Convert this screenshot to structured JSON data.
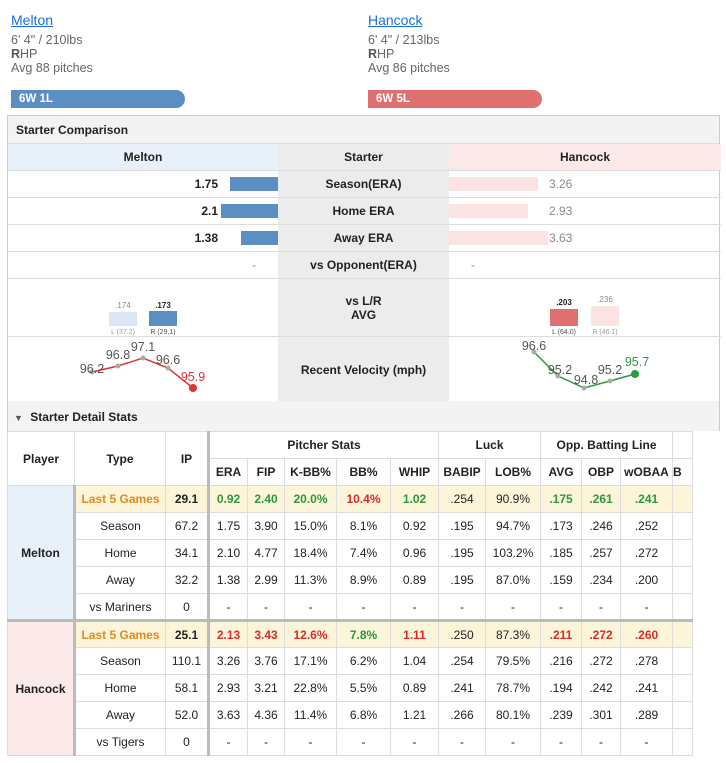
{
  "header": {
    "top_link": "...py"
  },
  "pitchers": [
    {
      "name": "Melton",
      "size": "6' 4\" / 210lbs",
      "hand_bold": "R",
      "hand_rest": "HP",
      "avg": "Avg 88 pitches",
      "record": "6W 1L",
      "color": "#5b8fc4"
    },
    {
      "name": "Hancock",
      "size": "6' 4\" / 213lbs",
      "hand_bold": "R",
      "hand_rest": "HP",
      "avg": "Avg 86 pitches",
      "record": "6W 5L",
      "color": "#e07070"
    }
  ],
  "comparison": {
    "title": "Starter Comparison",
    "left_header": "Melton",
    "mid_header": "Starter",
    "right_header": "Hancock",
    "rows": [
      {
        "label": "Season(ERA)",
        "left": "1.75",
        "right": "3.26"
      },
      {
        "label": "Home ERA",
        "left": "2.1",
        "right": "2.93"
      },
      {
        "label": "Away ERA",
        "left": "1.38",
        "right": "3.63"
      },
      {
        "label": "vs Opponent(ERA)",
        "left": "-",
        "right": "-"
      }
    ],
    "split_label_1": "vs L/R",
    "split_label_2": "AVG",
    "left_split": {
      "l_val": ".174",
      "l_tag": "L (37.2)",
      "r_val": ".173",
      "r_tag": "R (29.1)"
    },
    "right_split": {
      "l_val": ".203",
      "l_tag": "L (64.0)",
      "r_val": ".236",
      "r_tag": "R (46.1)"
    },
    "velocity_label": "Recent Velocity (mph)",
    "left_velocity": [
      "96.2",
      "96.8",
      "97.1",
      "96.6",
      "95.9"
    ],
    "right_velocity": [
      "96.6",
      "95.2",
      "94.8",
      "95.2",
      "95.7"
    ]
  },
  "detail": {
    "title": "Starter Detail Stats",
    "toggle_icon": "triangle-down-icon",
    "groups": {
      "pitcher": "Pitcher Stats",
      "luck": "Luck",
      "opp": "Opp. Batting Line"
    },
    "cols": {
      "player": "Player",
      "type": "Type",
      "ip": "IP",
      "era": "ERA",
      "fip": "FIP",
      "kbb": "K-BB%",
      "bb": "BB%",
      "whip": "WHIP",
      "babip": "BABIP",
      "lob": "LOB%",
      "avg": "AVG",
      "obp": "OBP",
      "wobaa": "wOBAA",
      "extra": "B"
    },
    "melton": {
      "player": "Melton",
      "rows": [
        {
          "type": "Last 5 Games",
          "ip": "29.1",
          "era": "0.92",
          "fip": "2.40",
          "kbb": "20.0%",
          "bb": "10.4%",
          "whip": "1.02",
          "babip": ".254",
          "lob": "90.9%",
          "avg": ".175",
          "obp": ".261",
          "wobaa": ".241"
        },
        {
          "type": "Season",
          "ip": "67.2",
          "era": "1.75",
          "fip": "3.90",
          "kbb": "15.0%",
          "bb": "8.1%",
          "whip": "0.92",
          "babip": ".195",
          "lob": "94.7%",
          "avg": ".173",
          "obp": ".246",
          "wobaa": ".252"
        },
        {
          "type": "Home",
          "ip": "34.1",
          "era": "2.10",
          "fip": "4.77",
          "kbb": "18.4%",
          "bb": "7.4%",
          "whip": "0.96",
          "babip": ".195",
          "lob": "103.2%",
          "avg": ".185",
          "obp": ".257",
          "wobaa": ".272"
        },
        {
          "type": "Away",
          "ip": "32.2",
          "era": "1.38",
          "fip": "2.99",
          "kbb": "11.3%",
          "bb": "8.9%",
          "whip": "0.89",
          "babip": ".195",
          "lob": "87.0%",
          "avg": ".159",
          "obp": ".234",
          "wobaa": ".200"
        },
        {
          "type": "vs Mariners",
          "ip": "0",
          "era": "-",
          "fip": "-",
          "kbb": "-",
          "bb": "-",
          "whip": "-",
          "babip": "-",
          "lob": "-",
          "avg": "-",
          "obp": "-",
          "wobaa": "-"
        }
      ]
    },
    "hancock": {
      "player": "Hancock",
      "rows": [
        {
          "type": "Last 5 Games",
          "ip": "25.1",
          "era": "2.13",
          "fip": "3.43",
          "kbb": "12.6%",
          "bb": "7.8%",
          "whip": "1.11",
          "babip": ".250",
          "lob": "87.3%",
          "avg": ".211",
          "obp": ".272",
          "wobaa": ".260"
        },
        {
          "type": "Season",
          "ip": "110.1",
          "era": "3.26",
          "fip": "3.76",
          "kbb": "17.1%",
          "bb": "6.2%",
          "whip": "1.04",
          "babip": ".254",
          "lob": "79.5%",
          "avg": ".216",
          "obp": ".272",
          "wobaa": ".278"
        },
        {
          "type": "Home",
          "ip": "58.1",
          "era": "2.93",
          "fip": "3.21",
          "kbb": "22.8%",
          "bb": "5.5%",
          "whip": "0.89",
          "babip": ".241",
          "lob": "78.7%",
          "avg": ".194",
          "obp": ".242",
          "wobaa": ".241"
        },
        {
          "type": "Away",
          "ip": "52.0",
          "era": "3.63",
          "fip": "4.36",
          "kbb": "11.4%",
          "bb": "6.8%",
          "whip": "1.21",
          "babip": ".266",
          "lob": "80.1%",
          "avg": ".239",
          "obp": ".301",
          "wobaa": ".289"
        },
        {
          "type": "vs Tigers",
          "ip": "0",
          "era": "-",
          "fip": "-",
          "kbb": "-",
          "bb": "-",
          "whip": "-",
          "babip": "-",
          "lob": "-",
          "avg": "-",
          "obp": "-",
          "wobaa": "-"
        }
      ]
    }
  },
  "colors": {
    "melton": "#5b8fc4",
    "hancock": "#e07070",
    "good": "#2a9a3c",
    "bad": "#d92b2b",
    "last5": "#e38a1a"
  }
}
